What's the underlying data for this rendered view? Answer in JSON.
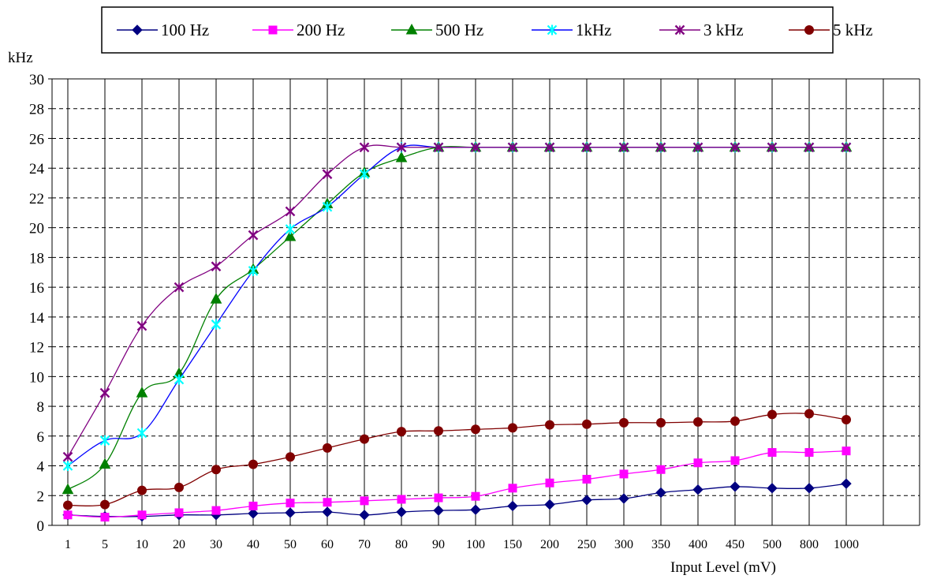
{
  "chart_data": {
    "type": "line",
    "ylabel": "kHz",
    "xlabel": "Input Level (mV)",
    "ylim": [
      0,
      30
    ],
    "ytick_step": 2,
    "grid": true,
    "legend_position": "top",
    "categories": [
      "1",
      "5",
      "10",
      "20",
      "30",
      "40",
      "50",
      "60",
      "70",
      "80",
      "90",
      "100",
      "150",
      "200",
      "250",
      "300",
      "350",
      "400",
      "450",
      "500",
      "800",
      "1000"
    ],
    "series": [
      {
        "name": "100 Hz",
        "color": "#000080",
        "marker": "diamond",
        "values": [
          0.7,
          0.6,
          0.6,
          0.7,
          0.7,
          0.8,
          0.85,
          0.9,
          0.7,
          0.9,
          1.0,
          1.05,
          1.3,
          1.4,
          1.7,
          1.8,
          2.2,
          2.4,
          2.6,
          2.5,
          2.5,
          2.8
        ]
      },
      {
        "name": "200 Hz",
        "color": "#ff00ff",
        "marker": "square",
        "values": [
          0.7,
          0.55,
          0.7,
          0.85,
          1.0,
          1.3,
          1.5,
          1.55,
          1.65,
          1.75,
          1.85,
          1.95,
          2.5,
          2.85,
          3.1,
          3.45,
          3.75,
          4.2,
          4.35,
          4.9,
          4.9,
          5.0
        ]
      },
      {
        "name": "500 Hz",
        "color": "#008000",
        "marker": "triangle",
        "values": [
          2.4,
          4.1,
          8.9,
          10.2,
          15.2,
          17.2,
          19.4,
          21.6,
          23.7,
          24.7,
          25.4,
          25.4,
          25.4,
          25.4,
          25.4,
          25.4,
          25.4,
          25.4,
          25.4,
          25.4,
          25.4,
          25.4
        ]
      },
      {
        "name": "1kHz",
        "color": "#00ffff",
        "line_color": "#0000ff",
        "marker": "asterisk",
        "values": [
          4.0,
          5.7,
          6.2,
          9.8,
          13.5,
          17.1,
          19.9,
          21.4,
          23.6,
          25.4,
          25.4,
          25.4,
          25.4,
          25.4,
          25.4,
          25.4,
          25.4,
          25.4,
          25.4,
          25.4,
          25.4,
          25.4
        ]
      },
      {
        "name": "3 kHz",
        "color": "#800080",
        "marker": "star",
        "values": [
          4.6,
          8.9,
          13.4,
          16.0,
          17.4,
          19.5,
          21.1,
          23.6,
          25.4,
          25.4,
          25.4,
          25.4,
          25.4,
          25.4,
          25.4,
          25.4,
          25.4,
          25.4,
          25.4,
          25.4,
          25.4,
          25.4
        ]
      },
      {
        "name": "5 kHz",
        "color": "#800000",
        "marker": "circle",
        "values": [
          1.35,
          1.4,
          2.35,
          2.55,
          3.75,
          4.1,
          4.6,
          5.2,
          5.8,
          6.3,
          6.35,
          6.45,
          6.55,
          6.75,
          6.8,
          6.9,
          6.9,
          6.95,
          7.0,
          7.45,
          7.5,
          7.1
        ]
      }
    ]
  }
}
